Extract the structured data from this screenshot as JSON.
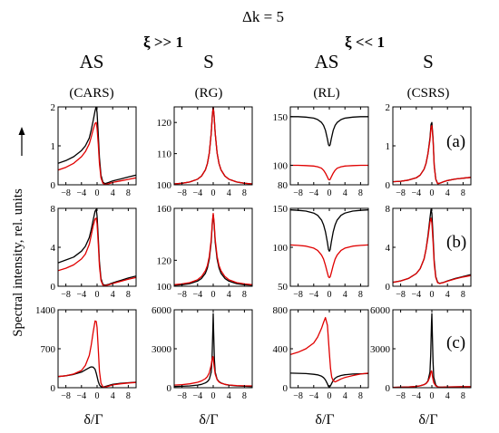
{
  "figure": {
    "top_title": "Δk = 5",
    "group_labels": [
      "ξ >> 1",
      "ξ << 1"
    ],
    "col_titles": [
      "AS",
      "S",
      "AS",
      "S"
    ],
    "col_subtitles": [
      "(CARS)",
      "(RG)",
      "(RL)",
      "(CSRS)"
    ],
    "row_labels": [
      "(a)",
      "(b)",
      "(c)"
    ],
    "y_axis_label": "Spectral intensity, rel. units",
    "x_axis_label": "δ/Γ",
    "x_tick_labels": [
      "−8",
      "−4",
      "0",
      "4",
      "8"
    ],
    "colors": {
      "black_series": "#000000",
      "red_series": "#e00000"
    }
  },
  "chart_data": [
    {
      "type": "line",
      "panel": "CARS (a)",
      "x_range": [
        -10,
        10
      ],
      "ylim": [
        0,
        2
      ],
      "yticks": [
        0,
        1,
        2
      ],
      "x": [
        -10,
        -8,
        -6,
        -4,
        -3,
        -2,
        -1.5,
        -1,
        -0.5,
        -0.2,
        0,
        0.3,
        0.6,
        1,
        1.5,
        2,
        3,
        4,
        6,
        8,
        10
      ],
      "series": [
        {
          "color": "black",
          "values": [
            0.55,
            0.62,
            0.72,
            0.88,
            1.0,
            1.2,
            1.4,
            1.65,
            1.9,
            2.02,
            1.85,
            1.3,
            0.7,
            0.25,
            0.07,
            0.03,
            0.06,
            0.1,
            0.15,
            0.2,
            0.25
          ]
        },
        {
          "color": "red",
          "values": [
            0.38,
            0.45,
            0.55,
            0.72,
            0.85,
            1.05,
            1.22,
            1.42,
            1.58,
            1.6,
            1.45,
            1.05,
            0.55,
            0.18,
            0.04,
            0.01,
            0.03,
            0.06,
            0.1,
            0.14,
            0.18
          ]
        }
      ]
    },
    {
      "type": "line",
      "panel": "RG (a)",
      "x_range": [
        -10,
        10
      ],
      "ylim": [
        100,
        125
      ],
      "yticks": [
        100,
        110,
        120
      ],
      "x": [
        -10,
        -8,
        -6,
        -4,
        -3,
        -2,
        -1.5,
        -1,
        -0.5,
        -0.2,
        0,
        0.2,
        0.5,
        1,
        1.5,
        2,
        3,
        4,
        6,
        8,
        10
      ],
      "series": [
        {
          "color": "black",
          "values": [
            100.3,
            100.5,
            100.9,
            101.8,
            102.8,
            104.8,
            106.8,
            110.2,
            116.5,
            122.5,
            125,
            122.5,
            116.5,
            110.2,
            106.8,
            104.8,
            102.8,
            101.8,
            100.9,
            100.5,
            100.3
          ]
        },
        {
          "color": "red",
          "values": [
            100.3,
            100.5,
            100.9,
            101.8,
            102.8,
            104.8,
            106.8,
            110.2,
            116.5,
            122.5,
            125,
            122.5,
            116.5,
            110.2,
            106.8,
            104.8,
            102.8,
            101.8,
            100.9,
            100.5,
            100.3
          ]
        }
      ]
    },
    {
      "type": "line",
      "panel": "RL (a)",
      "x_range": [
        -10,
        10
      ],
      "ylim": [
        80,
        160
      ],
      "yticks": [
        80,
        100,
        150
      ],
      "x": [
        -10,
        -8,
        -6,
        -4,
        -3,
        -2,
        -1.5,
        -1,
        -0.5,
        -0.2,
        0,
        0.2,
        0.5,
        1,
        1.5,
        2,
        3,
        4,
        6,
        8,
        10
      ],
      "series": [
        {
          "color": "black",
          "values": [
            150,
            150,
            149.5,
            148.5,
            147,
            144,
            141,
            136,
            127,
            121,
            120,
            121,
            127,
            136,
            141,
            144,
            147,
            148.5,
            149.5,
            150,
            150
          ]
        },
        {
          "color": "red",
          "values": [
            100,
            100,
            99.7,
            99.3,
            98.5,
            97,
            95,
            92,
            88,
            85.5,
            85,
            85.5,
            88,
            92,
            95,
            97,
            98.5,
            99.3,
            99.7,
            100,
            100
          ]
        }
      ]
    },
    {
      "type": "line",
      "panel": "CSRS (a)",
      "x_range": [
        -10,
        10
      ],
      "ylim": [
        0,
        2
      ],
      "yticks": [
        0,
        1,
        2
      ],
      "x": [
        -10,
        -8,
        -6,
        -4,
        -3,
        -2,
        -1.5,
        -1,
        -0.5,
        -0.2,
        0,
        0.3,
        0.6,
        1,
        1.5,
        2,
        3,
        4,
        6,
        8,
        10
      ],
      "series": [
        {
          "color": "black",
          "values": [
            0.08,
            0.09,
            0.12,
            0.18,
            0.25,
            0.4,
            0.55,
            0.8,
            1.2,
            1.55,
            1.6,
            1.2,
            0.5,
            0.15,
            0.03,
            0.04,
            0.08,
            0.11,
            0.15,
            0.17,
            0.19
          ]
        },
        {
          "color": "red",
          "values": [
            0.08,
            0.09,
            0.12,
            0.18,
            0.25,
            0.4,
            0.55,
            0.8,
            1.15,
            1.48,
            1.52,
            1.15,
            0.48,
            0.14,
            0.03,
            0.04,
            0.08,
            0.11,
            0.15,
            0.17,
            0.19
          ]
        }
      ]
    },
    {
      "type": "line",
      "panel": "CARS (b)",
      "x_range": [
        -10,
        10
      ],
      "ylim": [
        0,
        8
      ],
      "yticks": [
        0,
        4,
        8
      ],
      "x": [
        -10,
        -8,
        -6,
        -4,
        -3,
        -2,
        -1.5,
        -1,
        -0.5,
        -0.2,
        0,
        0.3,
        0.6,
        1,
        1.5,
        2,
        3,
        4,
        6,
        8,
        10
      ],
      "series": [
        {
          "color": "black",
          "values": [
            2.4,
            2.7,
            3.0,
            3.6,
            4.1,
            5.0,
            5.8,
            6.8,
            7.7,
            7.9,
            7.2,
            5.0,
            2.5,
            0.8,
            0.2,
            0.1,
            0.2,
            0.35,
            0.6,
            0.85,
            1.05
          ]
        },
        {
          "color": "red",
          "values": [
            1.6,
            1.85,
            2.2,
            2.8,
            3.3,
            4.3,
            5.2,
            6.2,
            6.9,
            7.0,
            6.4,
            4.4,
            2.1,
            0.6,
            0.12,
            0.06,
            0.15,
            0.28,
            0.5,
            0.72,
            0.9
          ]
        }
      ]
    },
    {
      "type": "line",
      "panel": "RG (b)",
      "x_range": [
        -10,
        10
      ],
      "ylim": [
        100,
        160
      ],
      "yticks": [
        100,
        120,
        160
      ],
      "x": [
        -10,
        -8,
        -6,
        -4,
        -3,
        -2,
        -1.5,
        -1,
        -0.5,
        -0.2,
        0,
        0.2,
        0.5,
        1,
        1.5,
        2,
        3,
        4,
        6,
        8,
        10
      ],
      "series": [
        {
          "color": "black",
          "values": [
            100.8,
            101.2,
            102,
            104,
            106,
            110,
            114,
            121,
            134,
            149,
            155,
            149,
            134,
            121,
            114,
            110,
            106,
            104,
            102,
            101.2,
            100.8
          ]
        },
        {
          "color": "red",
          "values": [
            101.2,
            101.8,
            102.8,
            105,
            107.5,
            112,
            116,
            123,
            136,
            150,
            156,
            150,
            136,
            123,
            116,
            112,
            107.5,
            105,
            102.8,
            101.8,
            101.2
          ]
        }
      ]
    },
    {
      "type": "line",
      "panel": "RL (b)",
      "x_range": [
        -10,
        10
      ],
      "ylim": [
        50,
        150
      ],
      "yticks": [
        50,
        100,
        150
      ],
      "x": [
        -10,
        -8,
        -6,
        -4,
        -3,
        -2,
        -1.5,
        -1,
        -0.5,
        -0.2,
        0,
        0.2,
        0.5,
        1,
        1.5,
        2,
        3,
        4,
        6,
        8,
        10
      ],
      "series": [
        {
          "color": "black",
          "values": [
            148,
            147.5,
            146.5,
            144,
            141,
            135,
            129,
            120,
            106,
            97,
            95,
            97,
            106,
            120,
            129,
            135,
            141,
            144,
            146.5,
            147.5,
            148
          ]
        },
        {
          "color": "red",
          "values": [
            103,
            102.5,
            101.5,
            99,
            96,
            90,
            85,
            77,
            67,
            62,
            61,
            62,
            67,
            77,
            85,
            90,
            96,
            99,
            101.5,
            102.5,
            103
          ]
        }
      ]
    },
    {
      "type": "line",
      "panel": "CSRS (b)",
      "x_range": [
        -10,
        10
      ],
      "ylim": [
        0,
        8
      ],
      "yticks": [
        0,
        4,
        8
      ],
      "x": [
        -10,
        -8,
        -6,
        -4,
        -3,
        -2,
        -1.5,
        -1,
        -0.5,
        -0.2,
        0,
        0.3,
        0.6,
        1,
        1.5,
        2,
        3,
        4,
        6,
        8,
        10
      ],
      "series": [
        {
          "color": "black",
          "values": [
            0.4,
            0.55,
            0.8,
            1.3,
            1.8,
            2.8,
            3.8,
            5.2,
            7.0,
            7.9,
            7.5,
            5.2,
            2.6,
            1.0,
            0.4,
            0.3,
            0.4,
            0.55,
            0.8,
            1.0,
            1.2
          ]
        },
        {
          "color": "red",
          "values": [
            0.4,
            0.55,
            0.8,
            1.3,
            1.8,
            2.8,
            3.8,
            5.0,
            6.6,
            7.0,
            6.5,
            4.6,
            2.3,
            0.9,
            0.35,
            0.28,
            0.38,
            0.52,
            0.75,
            0.95,
            1.1
          ]
        }
      ]
    },
    {
      "type": "line",
      "panel": "CARS (c)",
      "x_range": [
        -10,
        10
      ],
      "ylim": [
        0,
        1400
      ],
      "yticks": [
        0,
        700,
        1400
      ],
      "x": [
        -10,
        -8,
        -6,
        -4,
        -3,
        -2,
        -1.5,
        -1,
        -0.5,
        -0.2,
        0,
        0.3,
        0.6,
        1,
        1.5,
        2,
        3,
        4,
        6,
        8,
        10
      ],
      "series": [
        {
          "color": "black",
          "values": [
            200,
            215,
            240,
            280,
            320,
            360,
            375,
            370,
            330,
            260,
            200,
            110,
            50,
            20,
            10,
            20,
            40,
            60,
            80,
            90,
            100
          ]
        },
        {
          "color": "red",
          "values": [
            200,
            215,
            245,
            310,
            400,
            580,
            760,
            1000,
            1200,
            1190,
            1080,
            700,
            300,
            80,
            15,
            10,
            30,
            50,
            70,
            85,
            95
          ]
        }
      ]
    },
    {
      "type": "line",
      "panel": "RG (c)",
      "x_range": [
        -10,
        10
      ],
      "ylim": [
        0,
        6000
      ],
      "yticks": [
        0,
        3000,
        6000
      ],
      "x": [
        -10,
        -8,
        -6,
        -4,
        -3,
        -2,
        -1.5,
        -1,
        -0.5,
        -0.3,
        -0.1,
        0,
        0.1,
        0.3,
        0.5,
        1,
        1.5,
        2,
        3,
        4,
        6,
        8,
        10
      ],
      "series": [
        {
          "color": "black",
          "values": [
            90,
            110,
            140,
            200,
            260,
            370,
            470,
            650,
            1200,
            2200,
            4500,
            5700,
            4500,
            2200,
            1200,
            650,
            470,
            370,
            260,
            200,
            140,
            110,
            90
          ]
        },
        {
          "color": "red",
          "values": [
            200,
            240,
            300,
            420,
            520,
            700,
            860,
            1150,
            1750,
            2150,
            2400,
            2350,
            2000,
            1500,
            1050,
            620,
            440,
            350,
            260,
            210,
            170,
            150,
            140
          ]
        }
      ]
    },
    {
      "type": "line",
      "panel": "RL (c)",
      "x_range": [
        -10,
        10
      ],
      "ylim": [
        0,
        800
      ],
      "yticks": [
        0,
        400,
        800
      ],
      "x": [
        -10,
        -8,
        -6,
        -4,
        -3,
        -2,
        -1.5,
        -1,
        -0.5,
        -0.2,
        0,
        0.3,
        0.6,
        1,
        1.5,
        2,
        3,
        4,
        6,
        8,
        10
      ],
      "series": [
        {
          "color": "black",
          "values": [
            150,
            148,
            145,
            138,
            132,
            118,
            104,
            80,
            40,
            12,
            5,
            20,
            45,
            75,
            98,
            112,
            126,
            133,
            140,
            143,
            145
          ]
        },
        {
          "color": "red",
          "values": [
            340,
            365,
            400,
            460,
            520,
            610,
            670,
            720,
            640,
            480,
            360,
            200,
            110,
            70,
            60,
            70,
            90,
            105,
            125,
            140,
            150
          ]
        }
      ]
    },
    {
      "type": "line",
      "panel": "CSRS (c)",
      "x_range": [
        -10,
        10
      ],
      "ylim": [
        0,
        6000
      ],
      "yticks": [
        0,
        3000,
        6000
      ],
      "x": [
        -10,
        -8,
        -6,
        -4,
        -3,
        -2,
        -1.5,
        -1,
        -0.5,
        -0.3,
        -0.1,
        0,
        0.1,
        0.3,
        0.5,
        1,
        1.5,
        2,
        3,
        4,
        6,
        8,
        10
      ],
      "series": [
        {
          "color": "black",
          "values": [
            30,
            40,
            60,
            100,
            150,
            240,
            330,
            520,
            1200,
            2500,
            5000,
            5700,
            4500,
            2000,
            800,
            200,
            70,
            40,
            50,
            60,
            70,
            80,
            80
          ]
        },
        {
          "color": "red",
          "values": [
            30,
            40,
            60,
            100,
            150,
            240,
            320,
            480,
            850,
            1150,
            1300,
            1250,
            1000,
            620,
            380,
            150,
            60,
            40,
            50,
            60,
            70,
            80,
            80
          ]
        }
      ]
    }
  ]
}
